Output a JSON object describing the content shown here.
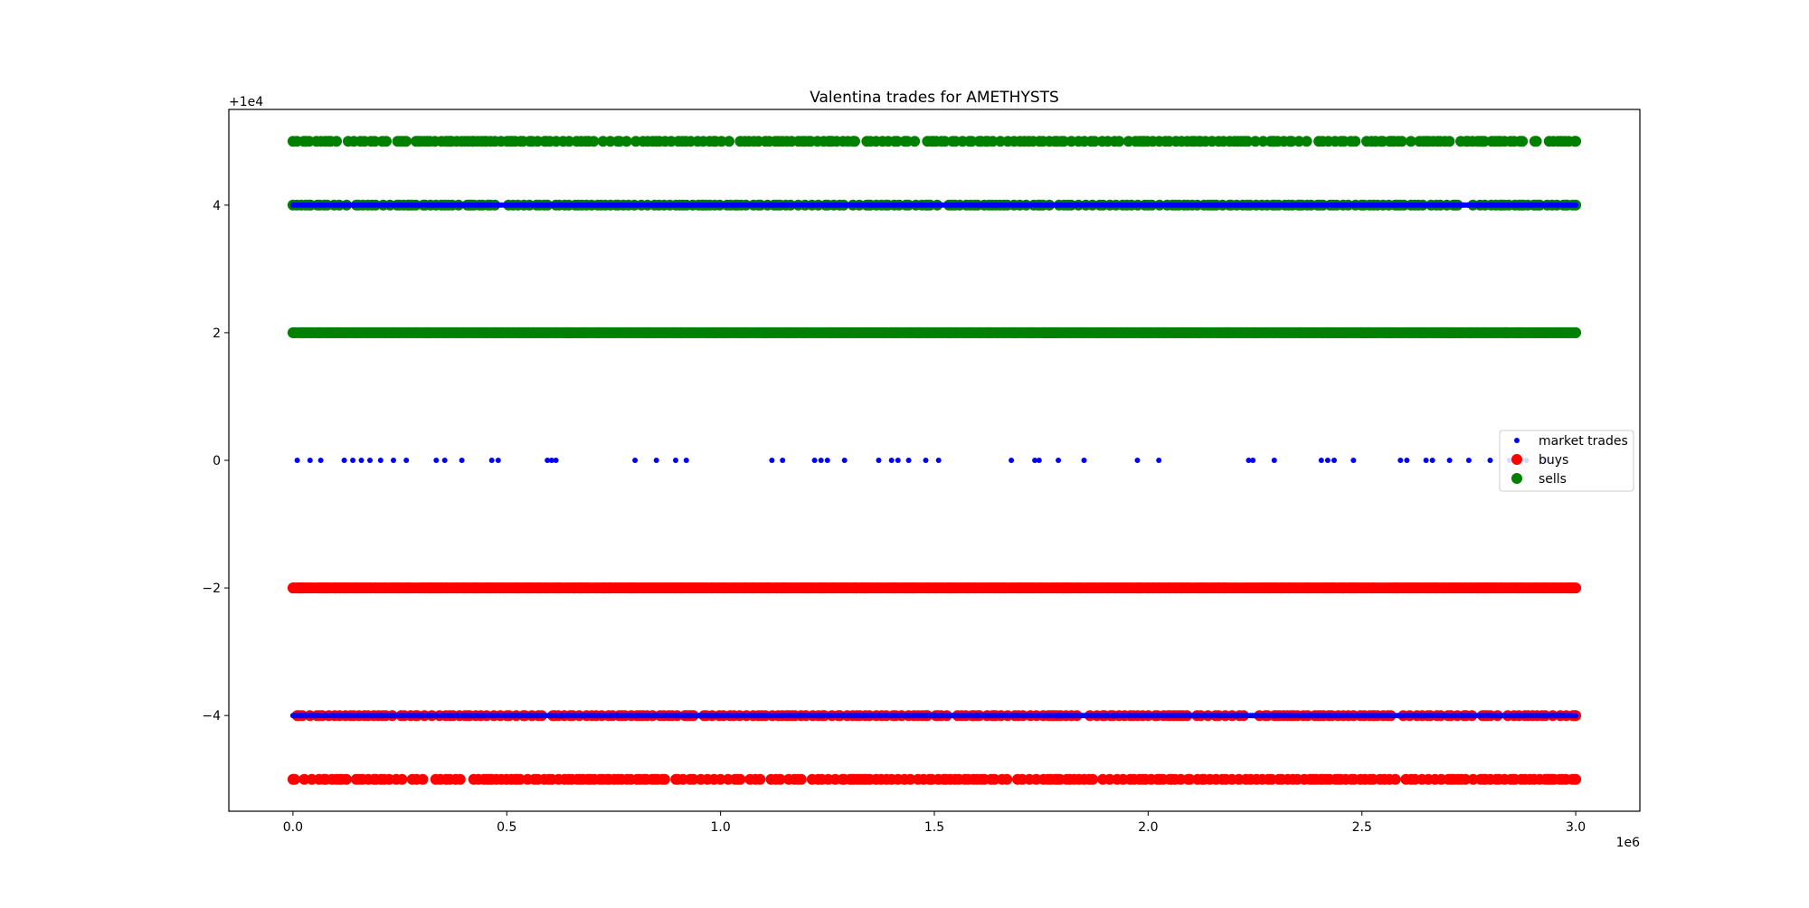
{
  "chart_data": {
    "type": "scatter",
    "title": "Valentina trades for AMETHYSTS",
    "xlabel": "",
    "ylabel": "",
    "x_offset_text": "1e6",
    "y_offset_text": "+1e4",
    "xlim": [
      -150000,
      3150000
    ],
    "ylim": [
      -5.5,
      5.5
    ],
    "x_ticks": [
      0,
      500000,
      1000000,
      1500000,
      2000000,
      2500000,
      3000000
    ],
    "x_tick_labels": [
      "0.0",
      "0.5",
      "1.0",
      "1.5",
      "2.0",
      "2.5",
      "3.0"
    ],
    "y_ticks": [
      -4,
      -2,
      0,
      2,
      4
    ],
    "y_tick_labels": [
      "−4",
      "−2",
      "0",
      "2",
      "4"
    ],
    "grid": false,
    "legend_placement": "center-right",
    "series": [
      {
        "name": "market trades",
        "color": "#0000ff",
        "marker": "small-dot",
        "levels": [
          {
            "y": 4,
            "x_range": [
              0,
              3000000
            ],
            "dense": true
          },
          {
            "y": 0,
            "x_points": [
              10000,
              40000,
              65000,
              120000,
              140000,
              160000,
              180000,
              205000,
              235000,
              265000,
              335000,
              355000,
              395000,
              465000,
              480000,
              595000,
              605000,
              615000,
              800000,
              850000,
              895000,
              920000,
              1120000,
              1145000,
              1220000,
              1235000,
              1250000,
              1290000,
              1370000,
              1400000,
              1415000,
              1440000,
              1480000,
              1510000,
              1680000,
              1735000,
              1745000,
              1790000,
              1850000,
              1975000,
              2025000,
              2235000,
              2245000,
              2295000,
              2405000,
              2420000,
              2435000,
              2480000,
              2590000,
              2605000,
              2650000,
              2665000,
              2705000,
              2750000,
              2800000,
              2845000,
              2885000,
              2930000
            ]
          },
          {
            "y": -4,
            "x_range": [
              0,
              3000000
            ],
            "dense": true
          }
        ]
      },
      {
        "name": "buys",
        "color": "#ff0000",
        "marker": "large-dot",
        "levels": [
          {
            "y": -2,
            "x_range": [
              0,
              3000000
            ],
            "dense": true
          },
          {
            "y": -4,
            "x_range": [
              10000,
              3000000
            ],
            "dense": false
          },
          {
            "y": -5,
            "x_range": [
              0,
              3000000
            ],
            "dense": false
          }
        ]
      },
      {
        "name": "sells",
        "color": "#008000",
        "marker": "large-dot",
        "levels": [
          {
            "y": 5,
            "x_range": [
              0,
              3000000
            ],
            "dense": false
          },
          {
            "y": 4,
            "x_range": [
              0,
              3000000
            ],
            "dense": false
          },
          {
            "y": 2,
            "x_range": [
              0,
              3000000
            ],
            "dense": true
          }
        ]
      }
    ]
  }
}
